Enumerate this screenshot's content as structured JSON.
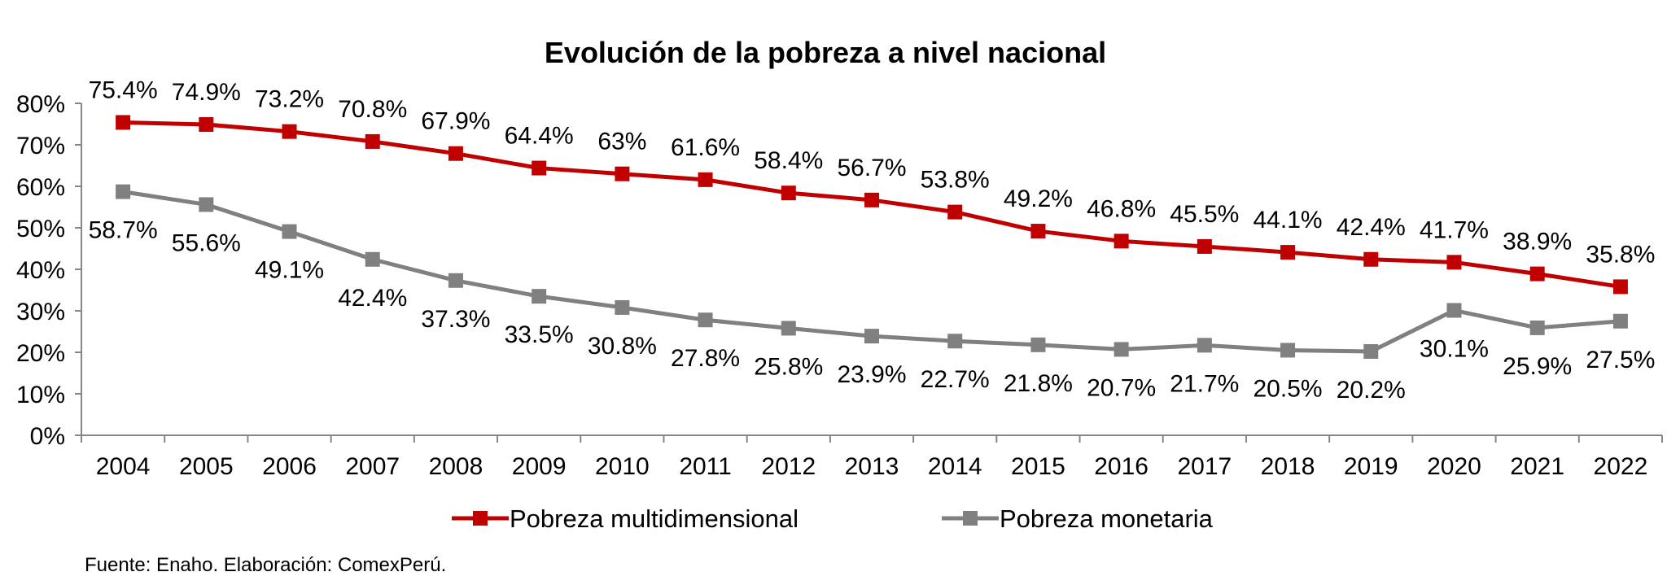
{
  "chart_data": {
    "type": "line",
    "title": "Evolución de la pobreza a nivel nacional",
    "xlabel": "",
    "ylabel": "",
    "x": [
      "2004",
      "2005",
      "2006",
      "2007",
      "2008",
      "2009",
      "2010",
      "2011",
      "2012",
      "2013",
      "2014",
      "2015",
      "2016",
      "2017",
      "2018",
      "2019",
      "2020",
      "2021",
      "2022"
    ],
    "y_ticks": [
      "0%",
      "10%",
      "20%",
      "30%",
      "40%",
      "50%",
      "60%",
      "70%",
      "80%"
    ],
    "ylim": [
      0,
      80
    ],
    "grid": false,
    "legend_position": "bottom",
    "series": [
      {
        "name": "Pobreza multidimensional",
        "color": "#C00000",
        "marker": "square",
        "values": [
          75.4,
          74.9,
          73.2,
          70.8,
          67.9,
          64.4,
          63,
          61.6,
          58.4,
          56.7,
          53.8,
          49.2,
          46.8,
          45.5,
          44.1,
          42.4,
          41.7,
          38.9,
          35.8
        ],
        "labels": [
          "75.4%",
          "74.9%",
          "73.2%",
          "70.8%",
          "67.9%",
          "64.4%",
          "63%",
          "61.6%",
          "58.4%",
          "56.7%",
          "53.8%",
          "49.2%",
          "46.8%",
          "45.5%",
          "44.1%",
          "42.4%",
          "41.7%",
          "38.9%",
          "35.8%"
        ],
        "label_position": "above"
      },
      {
        "name": "Pobreza monetaria",
        "color": "#808080",
        "marker": "square",
        "values": [
          58.7,
          55.6,
          49.1,
          42.4,
          37.3,
          33.5,
          30.8,
          27.8,
          25.8,
          23.9,
          22.7,
          21.8,
          20.7,
          21.7,
          20.5,
          20.2,
          30.1,
          25.9,
          27.5
        ],
        "labels": [
          "58.7%",
          "55.6%",
          "49.1%",
          "42.4%",
          "37.3%",
          "33.5%",
          "30.8%",
          "27.8%",
          "25.8%",
          "23.9%",
          "22.7%",
          "21.8%",
          "20.7%",
          "21.7%",
          "20.5%",
          "20.2%",
          "30.1%",
          "25.9%",
          "27.5%"
        ],
        "label_position": "below"
      }
    ]
  },
  "footer": {
    "source": "Fuente: Enaho. Elaboración: ComexPerú."
  }
}
